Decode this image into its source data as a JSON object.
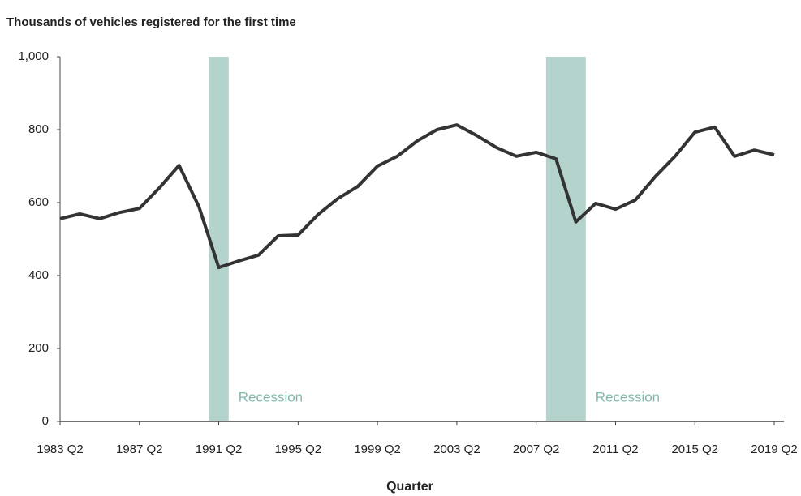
{
  "chart_data": {
    "type": "line",
    "title": "Thousands of vehicles registered for the first time",
    "x_label": "Quarter",
    "categories": [
      "1983 Q2",
      null,
      null,
      null,
      "1987 Q2",
      null,
      null,
      null,
      "1991 Q2",
      null,
      null,
      null,
      "1995 Q2",
      null,
      null,
      null,
      "1999 Q2",
      null,
      null,
      null,
      "2003 Q2",
      null,
      null,
      null,
      "2007 Q2",
      null,
      null,
      null,
      "2011 Q2",
      null,
      null,
      null,
      "2015 Q2",
      null,
      null,
      null,
      "2019 Q2"
    ],
    "series": [
      {
        "name": "Vehicles registered",
        "color": "#333333",
        "values": [
          556,
          569,
          556,
          573,
          584,
          640,
          702,
          589,
          422,
          440,
          456,
          509,
          511,
          567,
          611,
          644,
          700,
          727,
          769,
          800,
          813,
          784,
          751,
          727,
          738,
          720,
          547,
          598,
          582,
          607,
          671,
          727,
          793,
          807,
          727,
          744,
          731
        ]
      }
    ],
    "shaded_regions": [
      {
        "label": "Recession",
        "x": [
          7.5,
          8.5
        ],
        "color": "#b3d3cc"
      },
      {
        "label": "Recession",
        "x": [
          24.5,
          26.5
        ],
        "color": "#b3d3cc"
      }
    ],
    "ylim": [
      0,
      1000
    ],
    "yticks": [
      0,
      200,
      400,
      600,
      800,
      {
        "value": 1000,
        "label": "1,000"
      }
    ]
  }
}
